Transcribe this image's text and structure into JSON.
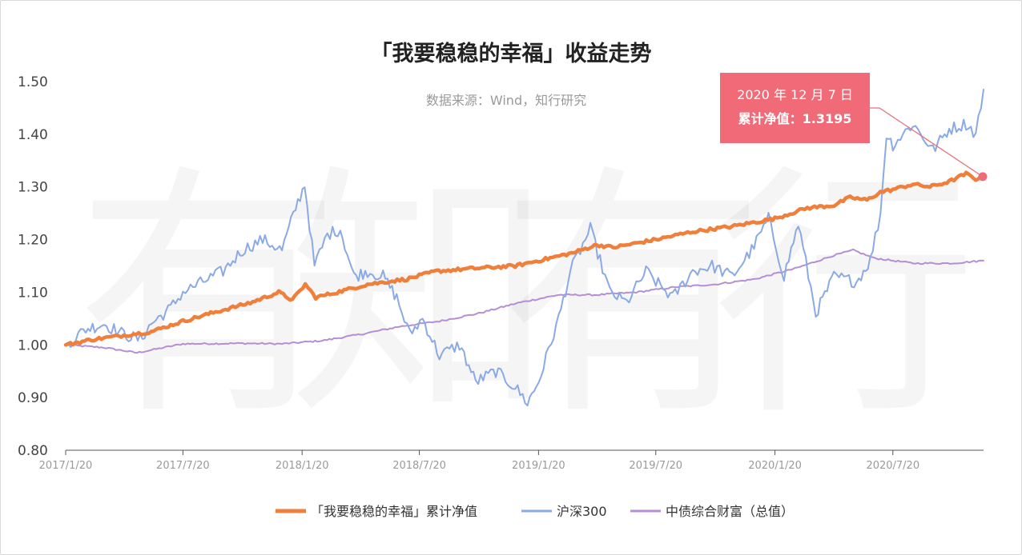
{
  "chart_data": {
    "type": "line",
    "title": "「我要稳稳的幸福」收益走势",
    "subtitle": "数据来源：Wind，知行研究",
    "watermark": "有知有行",
    "ylim": [
      0.8,
      1.5
    ],
    "yticks": [
      "0.80",
      "0.90",
      "1.00",
      "1.10",
      "1.20",
      "1.30",
      "1.40",
      "1.50"
    ],
    "xticks": [
      "2017/1/20",
      "2017/7/20",
      "2018/1/20",
      "2018/7/20",
      "2019/1/20",
      "2019/7/20",
      "2020/1/20",
      "2020/7/20"
    ],
    "xlim": [
      "2017-01-20",
      "2020-12-07"
    ],
    "legend_position": "bottom",
    "annotation": {
      "date": "2020 年 12 月 7 日",
      "label": "累计净值：1.3195",
      "x": "2020-12-07",
      "y": 1.3195
    },
    "series": [
      {
        "name": "「我要稳稳的幸福」累计净值",
        "color": "#f07f3c",
        "points": [
          [
            "2017-01-20",
            1.0
          ],
          [
            "2017-03-01",
            1.01
          ],
          [
            "2017-05-01",
            1.02
          ],
          [
            "2017-06-01",
            1.025
          ],
          [
            "2017-07-20",
            1.045
          ],
          [
            "2017-09-01",
            1.06
          ],
          [
            "2017-11-01",
            1.08
          ],
          [
            "2017-12-15",
            1.1
          ],
          [
            "2018-01-05",
            1.085
          ],
          [
            "2018-01-25",
            1.115
          ],
          [
            "2018-02-10",
            1.09
          ],
          [
            "2018-03-15",
            1.1
          ],
          [
            "2018-05-01",
            1.115
          ],
          [
            "2018-07-01",
            1.125
          ],
          [
            "2018-08-15",
            1.14
          ],
          [
            "2018-10-10",
            1.145
          ],
          [
            "2018-12-15",
            1.15
          ],
          [
            "2019-01-20",
            1.16
          ],
          [
            "2019-03-15",
            1.175
          ],
          [
            "2019-04-20",
            1.19
          ],
          [
            "2019-05-15",
            1.185
          ],
          [
            "2019-07-20",
            1.2
          ],
          [
            "2019-09-15",
            1.215
          ],
          [
            "2019-11-15",
            1.225
          ],
          [
            "2020-01-20",
            1.24
          ],
          [
            "2020-03-10",
            1.26
          ],
          [
            "2020-04-20",
            1.265
          ],
          [
            "2020-05-15",
            1.28
          ],
          [
            "2020-06-10",
            1.275
          ],
          [
            "2020-07-01",
            1.29
          ],
          [
            "2020-07-20",
            1.295
          ],
          [
            "2020-08-20",
            1.305
          ],
          [
            "2020-09-15",
            1.3
          ],
          [
            "2020-10-15",
            1.31
          ],
          [
            "2020-11-10",
            1.325
          ],
          [
            "2020-11-25",
            1.315
          ],
          [
            "2020-12-07",
            1.3195
          ]
        ]
      },
      {
        "name": "沪深300",
        "color": "#8aaae5",
        "points": [
          [
            "2017-01-20",
            1.0
          ],
          [
            "2017-02-20",
            1.03
          ],
          [
            "2017-03-20",
            1.04
          ],
          [
            "2017-04-20",
            1.02
          ],
          [
            "2017-05-15",
            1.01
          ],
          [
            "2017-06-01",
            1.04
          ],
          [
            "2017-07-01",
            1.07
          ],
          [
            "2017-07-20",
            1.1
          ],
          [
            "2017-08-20",
            1.12
          ],
          [
            "2017-09-20",
            1.14
          ],
          [
            "2017-10-20",
            1.18
          ],
          [
            "2017-11-20",
            1.2
          ],
          [
            "2017-12-20",
            1.18
          ],
          [
            "2018-01-10",
            1.26
          ],
          [
            "2018-01-24",
            1.305
          ],
          [
            "2018-02-08",
            1.15
          ],
          [
            "2018-02-28",
            1.21
          ],
          [
            "2018-03-20",
            1.22
          ],
          [
            "2018-04-10",
            1.13
          ],
          [
            "2018-05-01",
            1.14
          ],
          [
            "2018-05-25",
            1.13
          ],
          [
            "2018-06-15",
            1.09
          ],
          [
            "2018-07-05",
            1.02
          ],
          [
            "2018-07-25",
            1.05
          ],
          [
            "2018-08-20",
            0.98
          ],
          [
            "2018-09-20",
            1.0
          ],
          [
            "2018-10-15",
            0.93
          ],
          [
            "2018-11-15",
            0.95
          ],
          [
            "2018-12-15",
            0.92
          ],
          [
            "2019-01-03",
            0.89
          ],
          [
            "2019-01-20",
            0.93
          ],
          [
            "2019-02-20",
            1.05
          ],
          [
            "2019-03-10",
            1.14
          ],
          [
            "2019-04-10",
            1.22
          ],
          [
            "2019-05-10",
            1.1
          ],
          [
            "2019-06-05",
            1.08
          ],
          [
            "2019-07-05",
            1.14
          ],
          [
            "2019-07-20",
            1.12
          ],
          [
            "2019-08-15",
            1.09
          ],
          [
            "2019-09-15",
            1.14
          ],
          [
            "2019-10-15",
            1.15
          ],
          [
            "2019-11-15",
            1.13
          ],
          [
            "2019-12-15",
            1.18
          ],
          [
            "2020-01-10",
            1.24
          ],
          [
            "2020-02-03",
            1.13
          ],
          [
            "2020-02-25",
            1.23
          ],
          [
            "2020-03-23",
            1.06
          ],
          [
            "2020-04-20",
            1.13
          ],
          [
            "2020-05-25",
            1.12
          ],
          [
            "2020-06-15",
            1.16
          ],
          [
            "2020-07-01",
            1.25
          ],
          [
            "2020-07-10",
            1.4
          ],
          [
            "2020-07-20",
            1.38
          ],
          [
            "2020-08-20",
            1.42
          ],
          [
            "2020-09-20",
            1.37
          ],
          [
            "2020-10-15",
            1.41
          ],
          [
            "2020-11-10",
            1.42
          ],
          [
            "2020-11-25",
            1.4
          ],
          [
            "2020-12-07",
            1.485
          ]
        ]
      },
      {
        "name": "中债综合财富（总值）",
        "color": "#b58fd4",
        "points": [
          [
            "2017-01-20",
            1.0
          ],
          [
            "2017-03-20",
            0.995
          ],
          [
            "2017-05-10",
            0.985
          ],
          [
            "2017-07-20",
            1.002
          ],
          [
            "2017-10-20",
            1.003
          ],
          [
            "2017-12-20",
            1.002
          ],
          [
            "2018-02-20",
            1.008
          ],
          [
            "2018-04-20",
            1.02
          ],
          [
            "2018-06-20",
            1.035
          ],
          [
            "2018-08-20",
            1.045
          ],
          [
            "2018-10-20",
            1.06
          ],
          [
            "2018-12-20",
            1.08
          ],
          [
            "2019-02-20",
            1.095
          ],
          [
            "2019-04-20",
            1.095
          ],
          [
            "2019-06-20",
            1.1
          ],
          [
            "2019-08-20",
            1.11
          ],
          [
            "2019-10-20",
            1.115
          ],
          [
            "2019-12-20",
            1.125
          ],
          [
            "2020-02-20",
            1.145
          ],
          [
            "2020-04-20",
            1.17
          ],
          [
            "2020-05-20",
            1.18
          ],
          [
            "2020-06-20",
            1.165
          ],
          [
            "2020-08-20",
            1.155
          ],
          [
            "2020-10-20",
            1.155
          ],
          [
            "2020-12-07",
            1.16
          ]
        ]
      }
    ]
  }
}
